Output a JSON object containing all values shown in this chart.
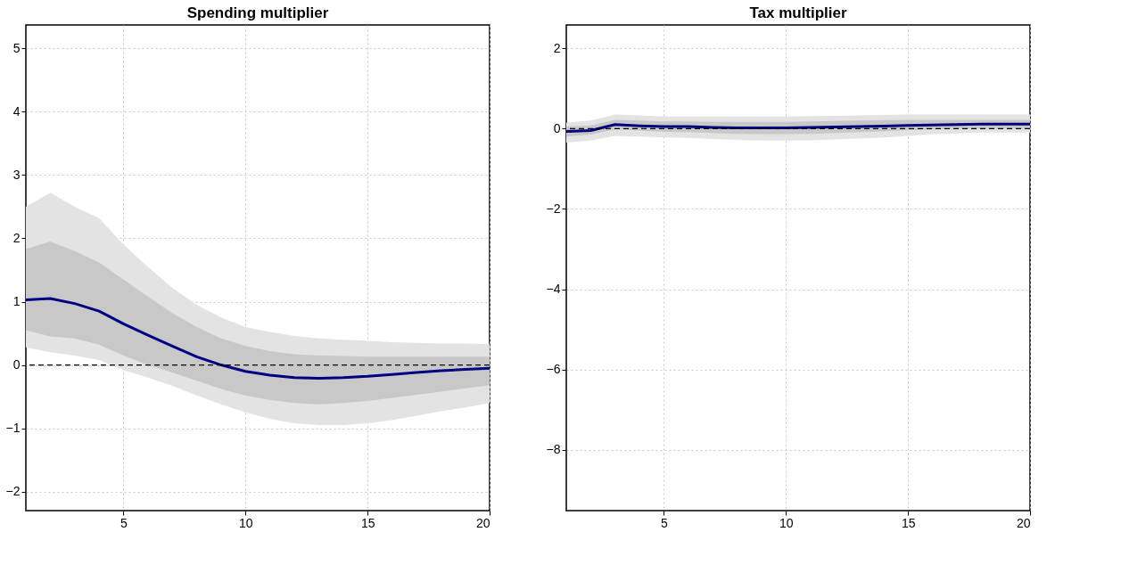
{
  "chart_data": [
    {
      "type": "line",
      "title": "Spending multiplier",
      "x": [
        1,
        2,
        3,
        4,
        5,
        6,
        7,
        8,
        9,
        10,
        11,
        12,
        13,
        14,
        15,
        16,
        17,
        18,
        19,
        20
      ],
      "xlim": [
        1,
        20
      ],
      "xticks": [
        5,
        10,
        15,
        20
      ],
      "ylim": [
        -2.3,
        5.37
      ],
      "yticks": [
        -2,
        -1,
        0,
        1,
        2,
        3,
        4,
        5
      ],
      "grid": true,
      "series": [
        {
          "color": "#e3e3e3",
          "values": [
            null,
            null,
            null,
            null,
            null,
            null,
            null,
            null,
            null,
            null,
            null,
            null,
            null,
            null,
            null,
            null,
            null,
            null,
            null,
            null
          ],
          "upper": [
            2.5,
            2.72,
            2.5,
            2.32,
            1.9,
            1.55,
            1.22,
            0.95,
            0.75,
            0.6,
            0.52,
            0.46,
            0.42,
            0.4,
            0.38,
            0.36,
            0.35,
            0.34,
            0.34,
            0.33
          ],
          "lower": [
            0.28,
            0.2,
            0.15,
            0.08,
            -0.08,
            -0.2,
            -0.33,
            -0.48,
            -0.62,
            -0.75,
            -0.85,
            -0.92,
            -0.95,
            -0.95,
            -0.92,
            -0.87,
            -0.8,
            -0.73,
            -0.67,
            -0.6
          ]
        },
        {
          "color": "#c8c8c8",
          "values": [
            null,
            null,
            null,
            null,
            null,
            null,
            null,
            null,
            null,
            null,
            null,
            null,
            null,
            null,
            null,
            null,
            null,
            null,
            null,
            null
          ],
          "upper": [
            1.83,
            1.95,
            1.8,
            1.62,
            1.35,
            1.08,
            0.82,
            0.6,
            0.42,
            0.3,
            0.22,
            0.17,
            0.15,
            0.14,
            0.13,
            0.13,
            0.13,
            0.13,
            0.13,
            0.13
          ],
          "lower": [
            0.55,
            0.45,
            0.42,
            0.32,
            0.15,
            0.0,
            -0.12,
            -0.25,
            -0.38,
            -0.48,
            -0.55,
            -0.6,
            -0.62,
            -0.6,
            -0.57,
            -0.52,
            -0.47,
            -0.42,
            -0.37,
            -0.32
          ]
        },
        {
          "color": "#000080",
          "line_style": "solid",
          "values": [
            1.03,
            1.05,
            0.97,
            0.85,
            0.65,
            0.47,
            0.3,
            0.13,
            0.0,
            -0.1,
            -0.16,
            -0.2,
            -0.21,
            -0.2,
            -0.18,
            -0.15,
            -0.12,
            -0.09,
            -0.07,
            -0.05
          ]
        }
      ],
      "ref_lines": [
        {
          "axis": "y",
          "value": 0,
          "color": "#000000",
          "line_style": "dashed"
        }
      ]
    },
    {
      "type": "line",
      "title": "Tax multiplier",
      "x": [
        1,
        2,
        3,
        4,
        5,
        6,
        7,
        8,
        9,
        10,
        11,
        12,
        13,
        14,
        15,
        16,
        17,
        18,
        19,
        20
      ],
      "xlim": [
        1,
        20
      ],
      "xticks": [
        5,
        10,
        15,
        20
      ],
      "ylim": [
        -9.51,
        2.58
      ],
      "yticks": [
        -8,
        -6,
        -4,
        -2,
        0,
        2
      ],
      "grid": true,
      "series": [
        {
          "color": "#e3e3e3",
          "values": [
            null,
            null,
            null,
            null,
            null,
            null,
            null,
            null,
            null,
            null,
            null,
            null,
            null,
            null,
            null,
            null,
            null,
            null,
            null,
            null
          ],
          "upper": [
            0.15,
            0.2,
            0.35,
            0.33,
            0.3,
            0.3,
            0.3,
            0.3,
            0.3,
            0.3,
            0.31,
            0.32,
            0.33,
            0.34,
            0.35,
            0.35,
            0.35,
            0.35,
            0.35,
            0.35
          ],
          "lower": [
            -0.35,
            -0.3,
            -0.18,
            -0.2,
            -0.22,
            -0.23,
            -0.26,
            -0.28,
            -0.3,
            -0.3,
            -0.29,
            -0.27,
            -0.25,
            -0.22,
            -0.18,
            -0.14,
            -0.12,
            -0.1,
            -0.1,
            -0.1
          ]
        },
        {
          "color": "#c8c8c8",
          "values": [
            null,
            null,
            null,
            null,
            null,
            null,
            null,
            null,
            null,
            null,
            null,
            null,
            null,
            null,
            null,
            null,
            null,
            null,
            null,
            null
          ],
          "upper": [
            0.05,
            0.08,
            0.22,
            0.2,
            0.18,
            0.18,
            0.17,
            0.17,
            0.17,
            0.17,
            0.18,
            0.19,
            0.2,
            0.21,
            0.22,
            0.22,
            0.22,
            0.22,
            0.22,
            0.22
          ],
          "lower": [
            -0.2,
            -0.15,
            -0.02,
            -0.05,
            -0.08,
            -0.09,
            -0.11,
            -0.13,
            -0.14,
            -0.14,
            -0.13,
            -0.11,
            -0.09,
            -0.07,
            -0.04,
            -0.02,
            0.0,
            0.0,
            0.0,
            0.0
          ]
        },
        {
          "color": "#000080",
          "line_style": "solid",
          "values": [
            -0.07,
            -0.05,
            0.1,
            0.07,
            0.05,
            0.05,
            0.03,
            0.02,
            0.02,
            0.02,
            0.03,
            0.04,
            0.05,
            0.06,
            0.08,
            0.09,
            0.1,
            0.11,
            0.11,
            0.11
          ]
        }
      ],
      "ref_lines": [
        {
          "axis": "y",
          "value": 0,
          "color": "#000000",
          "line_style": "dashed"
        }
      ]
    }
  ]
}
